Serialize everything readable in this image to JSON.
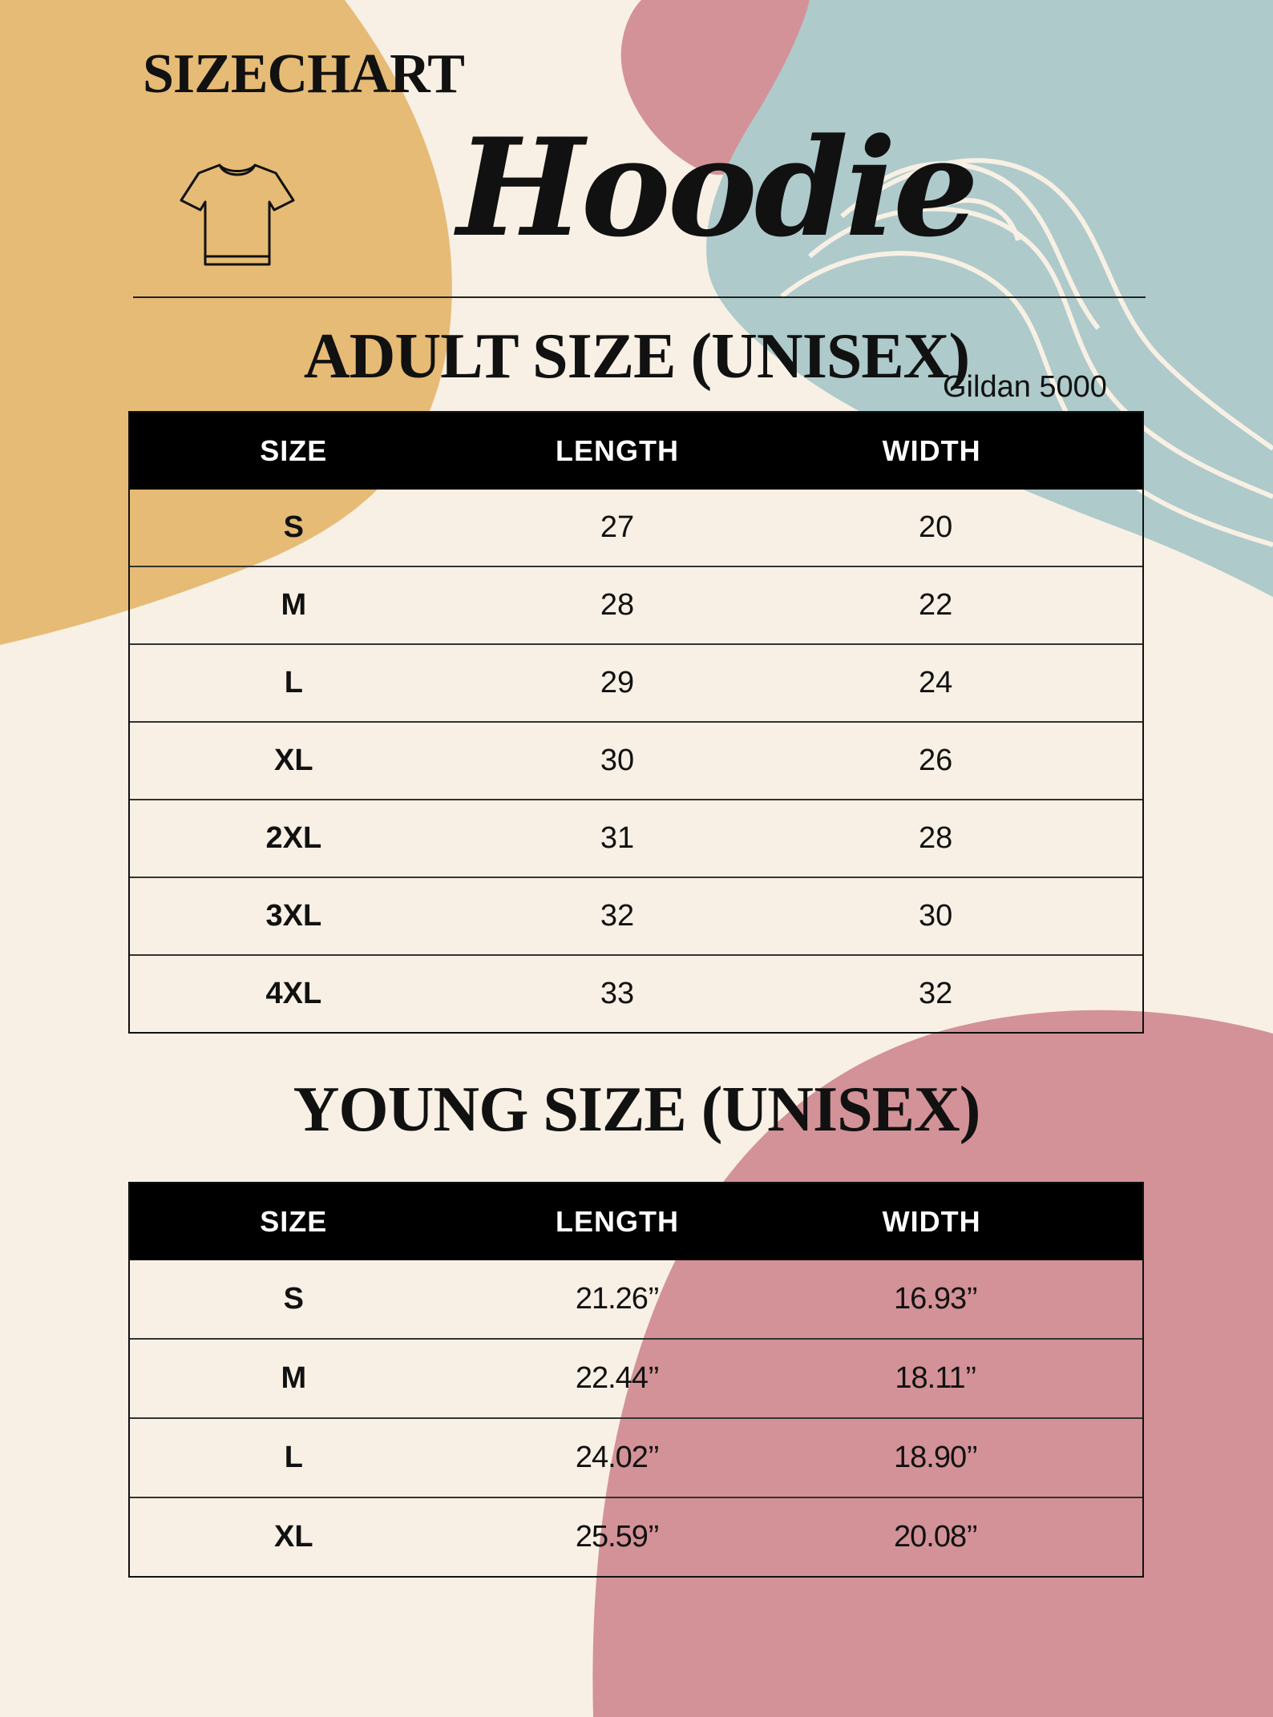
{
  "header": {
    "brand": "SIZECHART",
    "product": "Hoodie",
    "shirt_icon": "tshirt-outline-icon"
  },
  "adult": {
    "title": "ADULT SIZE (UNISEX)",
    "subtitle": "Gildan 5000",
    "columns": [
      "SIZE",
      "LENGTH",
      "WIDTH"
    ],
    "rows": [
      [
        "S",
        "27",
        "20"
      ],
      [
        "M",
        "28",
        "22"
      ],
      [
        "L",
        "29",
        "24"
      ],
      [
        "XL",
        "30",
        "26"
      ],
      [
        "2XL",
        "31",
        "28"
      ],
      [
        "3XL",
        "32",
        "30"
      ],
      [
        "4XL",
        "33",
        "32"
      ]
    ]
  },
  "young": {
    "title": "YOUNG SIZE (UNISEX)",
    "columns": [
      "SIZE",
      "LENGTH",
      "WIDTH"
    ],
    "rows": [
      [
        "S",
        "21.26’’",
        "16.93’’"
      ],
      [
        "M",
        "22.44’’",
        "18.11’’"
      ],
      [
        "L",
        "24.02’’",
        "18.90’’"
      ],
      [
        "XL",
        "25.59’’",
        "20.08’’"
      ]
    ]
  },
  "colors": {
    "background": "#f8f0e4",
    "mustard": "#e6bb76",
    "rose": "#d39297",
    "teal": "#aecacb",
    "header_bg": "#000000"
  }
}
